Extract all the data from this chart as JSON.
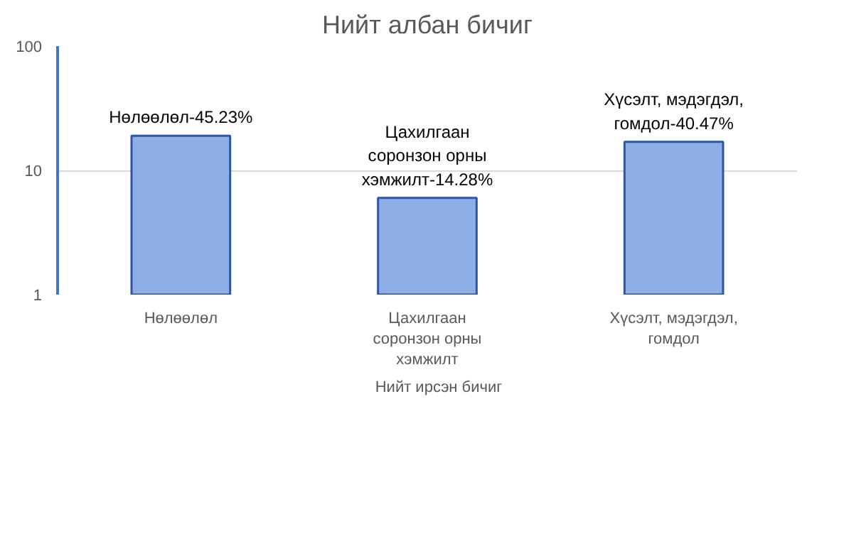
{
  "chart_data": {
    "type": "bar",
    "title": "Нийт албан бичиг",
    "categories": [
      "Нөлөөлөл",
      "Цахилгаан соронзон орны хэмжилт",
      "Хүсэлт, мэдэгдэл, гомдол"
    ],
    "series": [
      {
        "name": "Нийт ирсэн бичиг",
        "color": "#8eaee6",
        "values": [
          19,
          6,
          17
        ]
      }
    ],
    "value_labels": [
      "Нөлөөлөл-45.23%",
      "Цахилгаан соронзон орны хэмжилт-14.28%",
      "Хүсэлт, мэдэгдэл, гомдол-40.47%"
    ],
    "log": true,
    "ylim": [
      1,
      100
    ],
    "yticks": [
      1,
      10,
      100
    ],
    "grid": "y",
    "legend": "bottom"
  }
}
